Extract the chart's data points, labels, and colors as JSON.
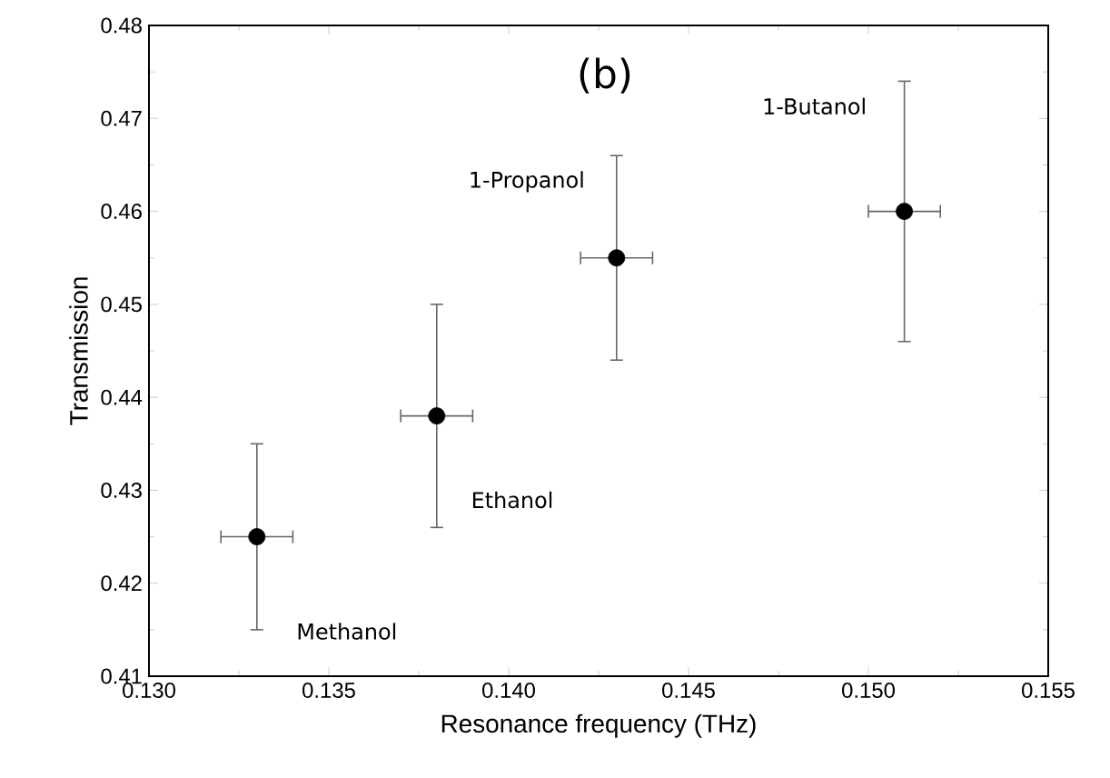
{
  "chart_data": {
    "type": "scatter",
    "title": "(b)",
    "xlabel": "Resonance frequency (THz)",
    "ylabel": "Transmission",
    "x": [
      0.133,
      0.138,
      0.143,
      0.151
    ],
    "values": [
      0.425,
      0.438,
      0.455,
      0.46
    ],
    "errors": [
      [
        0.415,
        0.435
      ],
      [
        0.426,
        0.45
      ],
      [
        0.444,
        0.466
      ],
      [
        0.446,
        0.474
      ]
    ],
    "xerrors": [
      0.001,
      0.001,
      0.001,
      0.001
    ],
    "color": "#000000",
    "marker": "circle",
    "xlim": [
      0.13,
      0.155
    ],
    "ylim": [
      0.41,
      0.48
    ],
    "xticks": [
      {
        "value": 0.13,
        "label": "0.130"
      },
      {
        "value": 0.135,
        "label": "0.135"
      },
      {
        "value": 0.14,
        "label": "0.140"
      },
      {
        "value": 0.145,
        "label": "0.145"
      },
      {
        "value": 0.15,
        "label": "0.150"
      },
      {
        "value": 0.155,
        "label": "0.155"
      }
    ],
    "yticks": [
      0.41,
      0.42,
      0.43,
      0.44,
      0.45,
      0.46,
      0.47,
      0.48
    ],
    "annotations": [
      "Methanol",
      "Ethanol",
      "1-Propanol",
      "1-Butanol"
    ]
  }
}
